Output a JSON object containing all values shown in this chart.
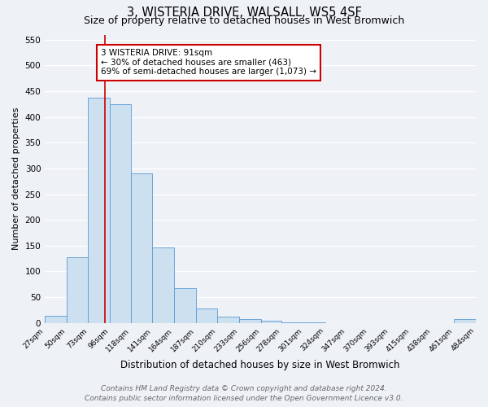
{
  "title": "3, WISTERIA DRIVE, WALSALL, WS5 4SF",
  "subtitle": "Size of property relative to detached houses in West Bromwich",
  "bar_values": [
    14,
    127,
    438,
    425,
    291,
    147,
    68,
    28,
    12,
    7,
    5,
    1,
    1,
    0,
    0,
    0,
    0,
    0,
    0,
    7
  ],
  "bin_edges": [
    27,
    50,
    73,
    96,
    118,
    141,
    164,
    187,
    210,
    233,
    256,
    278,
    301,
    324,
    347,
    370,
    393,
    415,
    438,
    461,
    484
  ],
  "tick_labels": [
    "27sqm",
    "50sqm",
    "73sqm",
    "96sqm",
    "118sqm",
    "141sqm",
    "164sqm",
    "187sqm",
    "210sqm",
    "233sqm",
    "256sqm",
    "278sqm",
    "301sqm",
    "324sqm",
    "347sqm",
    "370sqm",
    "393sqm",
    "415sqm",
    "438sqm",
    "461sqm",
    "484sqm"
  ],
  "ylabel": "Number of detached properties",
  "xlabel": "Distribution of detached houses by size in West Bromwich",
  "bar_color": "#cce0f0",
  "bar_edge_color": "#5b9bd5",
  "property_line_x": 91,
  "property_line_color": "#cc0000",
  "annotation_line1": "3 WISTERIA DRIVE: 91sqm",
  "annotation_line2": "← 30% of detached houses are smaller (463)",
  "annotation_line3": "69% of semi-detached houses are larger (1,073) →",
  "annotation_box_color": "#cc0000",
  "ylim": [
    0,
    560
  ],
  "yticks": [
    0,
    50,
    100,
    150,
    200,
    250,
    300,
    350,
    400,
    450,
    500,
    550
  ],
  "footer_line1": "Contains HM Land Registry data © Crown copyright and database right 2024.",
  "footer_line2": "Contains public sector information licensed under the Open Government Licence v3.0.",
  "background_color": "#eef2f7",
  "grid_color": "#ffffff",
  "title_fontsize": 10.5,
  "subtitle_fontsize": 9,
  "annotation_fontsize": 7.5,
  "footer_fontsize": 6.5,
  "ylabel_fontsize": 8,
  "xlabel_fontsize": 8.5,
  "tick_fontsize": 6.5,
  "ytick_fontsize": 7.5
}
